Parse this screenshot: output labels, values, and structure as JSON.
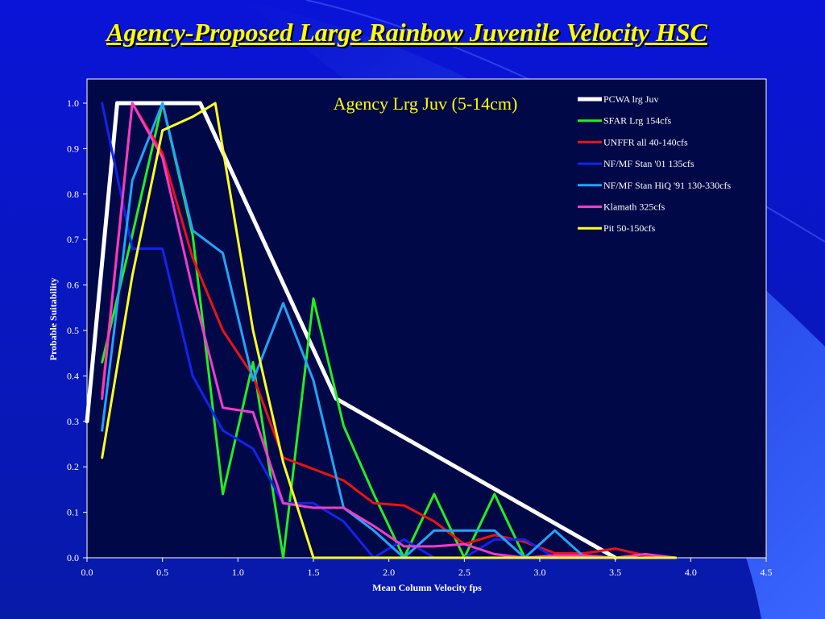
{
  "slide": {
    "title": "Agency-Proposed Large Rainbow Juvenile Velocity HSC"
  },
  "colors": {
    "background_top": "#0a14d8",
    "background_bottom": "#081aa8",
    "plot_area": "#000848",
    "swoosh": "#3a66ff",
    "title_text": "#ffff00"
  },
  "chart_data": {
    "type": "line",
    "title": "Agency Lrg Juv (5-14cm)",
    "xlabel": "Mean Column Velocity fps",
    "ylabel": "Probable Suitability",
    "xlim": [
      0,
      4.5
    ],
    "ylim": [
      0,
      1.0
    ],
    "x_ticks": [
      "0.0",
      "0.5",
      "1.0",
      "1.5",
      "2.0",
      "2.5",
      "3.0",
      "3.5",
      "4.0",
      "4.5"
    ],
    "y_ticks": [
      "0.0",
      "0.1",
      "0.2",
      "0.3",
      "0.4",
      "0.5",
      "0.6",
      "0.7",
      "0.8",
      "0.9",
      "1.0"
    ],
    "grid": false,
    "legend_position": "top-right",
    "series": [
      {
        "name": "PCWA lrg Juv",
        "color": "#ffffff",
        "width": 5,
        "x": [
          0,
          0.2,
          0.75,
          1.65,
          3.5
        ],
        "y": [
          0.3,
          1.0,
          1.0,
          0.35,
          0.0
        ]
      },
      {
        "name": "SFAR Lrg  154cfs",
        "color": "#22ee22",
        "width": 3,
        "x": [
          0.1,
          0.3,
          0.5,
          0.7,
          0.9,
          1.1,
          1.3,
          1.5,
          1.7,
          1.9,
          2.1,
          2.3,
          2.5,
          2.7,
          2.9,
          3.1,
          3.3,
          3.5,
          3.7,
          3.9
        ],
        "y": [
          0.43,
          0.71,
          1.0,
          0.71,
          0.14,
          0.43,
          0.0,
          0.57,
          0.29,
          0.14,
          0.0,
          0.14,
          0.0,
          0.14,
          0.0,
          0.0,
          0.0,
          0.0,
          0.0,
          0.0
        ]
      },
      {
        "name": "UNFFR all 40-140cfs",
        "color": "#ee1111",
        "width": 3,
        "x": [
          0.1,
          0.3,
          0.5,
          0.7,
          0.9,
          1.1,
          1.3,
          1.5,
          1.7,
          1.9,
          2.1,
          2.3,
          2.5,
          2.7,
          2.9,
          3.1,
          3.3,
          3.5,
          3.7,
          3.9
        ],
        "y": [
          0.36,
          1.0,
          0.89,
          0.66,
          0.5,
          0.4,
          0.22,
          0.195,
          0.17,
          0.12,
          0.115,
          0.08,
          0.03,
          0.05,
          0.035,
          0.01,
          0.01,
          0.02,
          0.005,
          0.0
        ]
      },
      {
        "name": "NF/MF Stan '01 135cfs",
        "color": "#1024ee",
        "width": 3,
        "x": [
          0.1,
          0.3,
          0.5,
          0.7,
          0.9,
          1.1,
          1.3,
          1.5,
          1.7,
          1.9,
          2.1,
          2.3,
          2.5,
          2.7,
          2.9,
          3.1,
          3.3,
          3.5,
          3.7,
          3.9
        ],
        "y": [
          1.0,
          0.68,
          0.68,
          0.4,
          0.28,
          0.24,
          0.12,
          0.12,
          0.08,
          0.0,
          0.04,
          0.0,
          0.0,
          0.04,
          0.04,
          0.0,
          0.0,
          0.0,
          0.0,
          0.0
        ]
      },
      {
        "name": "NF/MF Stan HiQ '91 130-330cfs",
        "color": "#22a4f8",
        "width": 3,
        "x": [
          0.1,
          0.3,
          0.5,
          0.7,
          0.9,
          1.1,
          1.3,
          1.5,
          1.7,
          1.9,
          2.1,
          2.3,
          2.5,
          2.7,
          2.9,
          3.1,
          3.3,
          3.5,
          3.7,
          3.9
        ],
        "y": [
          0.28,
          0.83,
          1.0,
          0.72,
          0.67,
          0.39,
          0.56,
          0.39,
          0.11,
          0.06,
          0.0,
          0.06,
          0.06,
          0.06,
          0.0,
          0.06,
          0.0,
          0.0,
          0.0,
          0.0
        ]
      },
      {
        "name": "Klamath 325cfs",
        "color": "#f03cc8",
        "width": 3,
        "x": [
          0.1,
          0.3,
          0.5,
          0.7,
          0.9,
          1.1,
          1.3,
          1.5,
          1.7,
          1.9,
          2.1,
          2.3,
          2.5,
          2.7,
          2.9,
          3.1,
          3.3,
          3.5,
          3.7,
          3.9
        ],
        "y": [
          0.35,
          1.0,
          0.88,
          0.59,
          0.33,
          0.32,
          0.12,
          0.11,
          0.11,
          0.07,
          0.025,
          0.025,
          0.03,
          0.008,
          0.0,
          0.005,
          0.005,
          0.0,
          0.008,
          0.0
        ]
      },
      {
        "name": "Pit 50-150cfs",
        "color": "#ffff22",
        "width": 3,
        "x": [
          0.1,
          0.3,
          0.5,
          0.7,
          0.85,
          1.1,
          1.3,
          1.5,
          1.7,
          1.9,
          2.1,
          2.3,
          2.5,
          2.7,
          2.9,
          3.1,
          3.3,
          3.5,
          3.7,
          3.9
        ],
        "y": [
          0.22,
          0.62,
          0.94,
          0.97,
          1.0,
          0.5,
          0.21,
          0.0,
          0.0,
          0.0,
          0.0,
          0.0,
          0.0,
          0.0,
          0.0,
          0.0,
          0.0,
          0.0,
          0.0,
          0.0
        ]
      }
    ]
  }
}
